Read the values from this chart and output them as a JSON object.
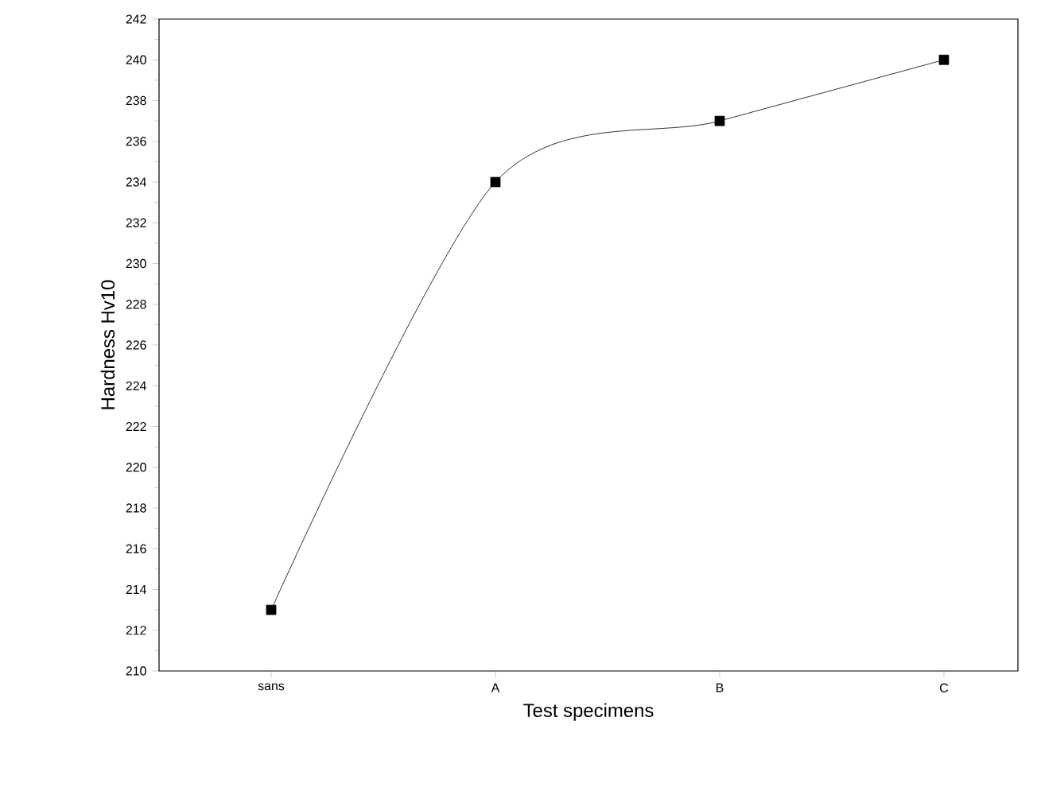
{
  "chart_data": {
    "type": "line",
    "xlabel": "Test specimens",
    "ylabel": "Hardness Hv10",
    "categories": [
      "sans",
      "A",
      "B",
      "C"
    ],
    "series": [
      {
        "color": "#000000",
        "values": [
          213,
          234,
          237,
          240
        ]
      }
    ],
    "ylim": [
      210,
      242
    ],
    "yticks": [
      210,
      212,
      214,
      216,
      218,
      220,
      222,
      224,
      226,
      228,
      230,
      232,
      234,
      236,
      238,
      240,
      242
    ],
    "marker": "square",
    "line_style": "solid",
    "grid": false
  }
}
